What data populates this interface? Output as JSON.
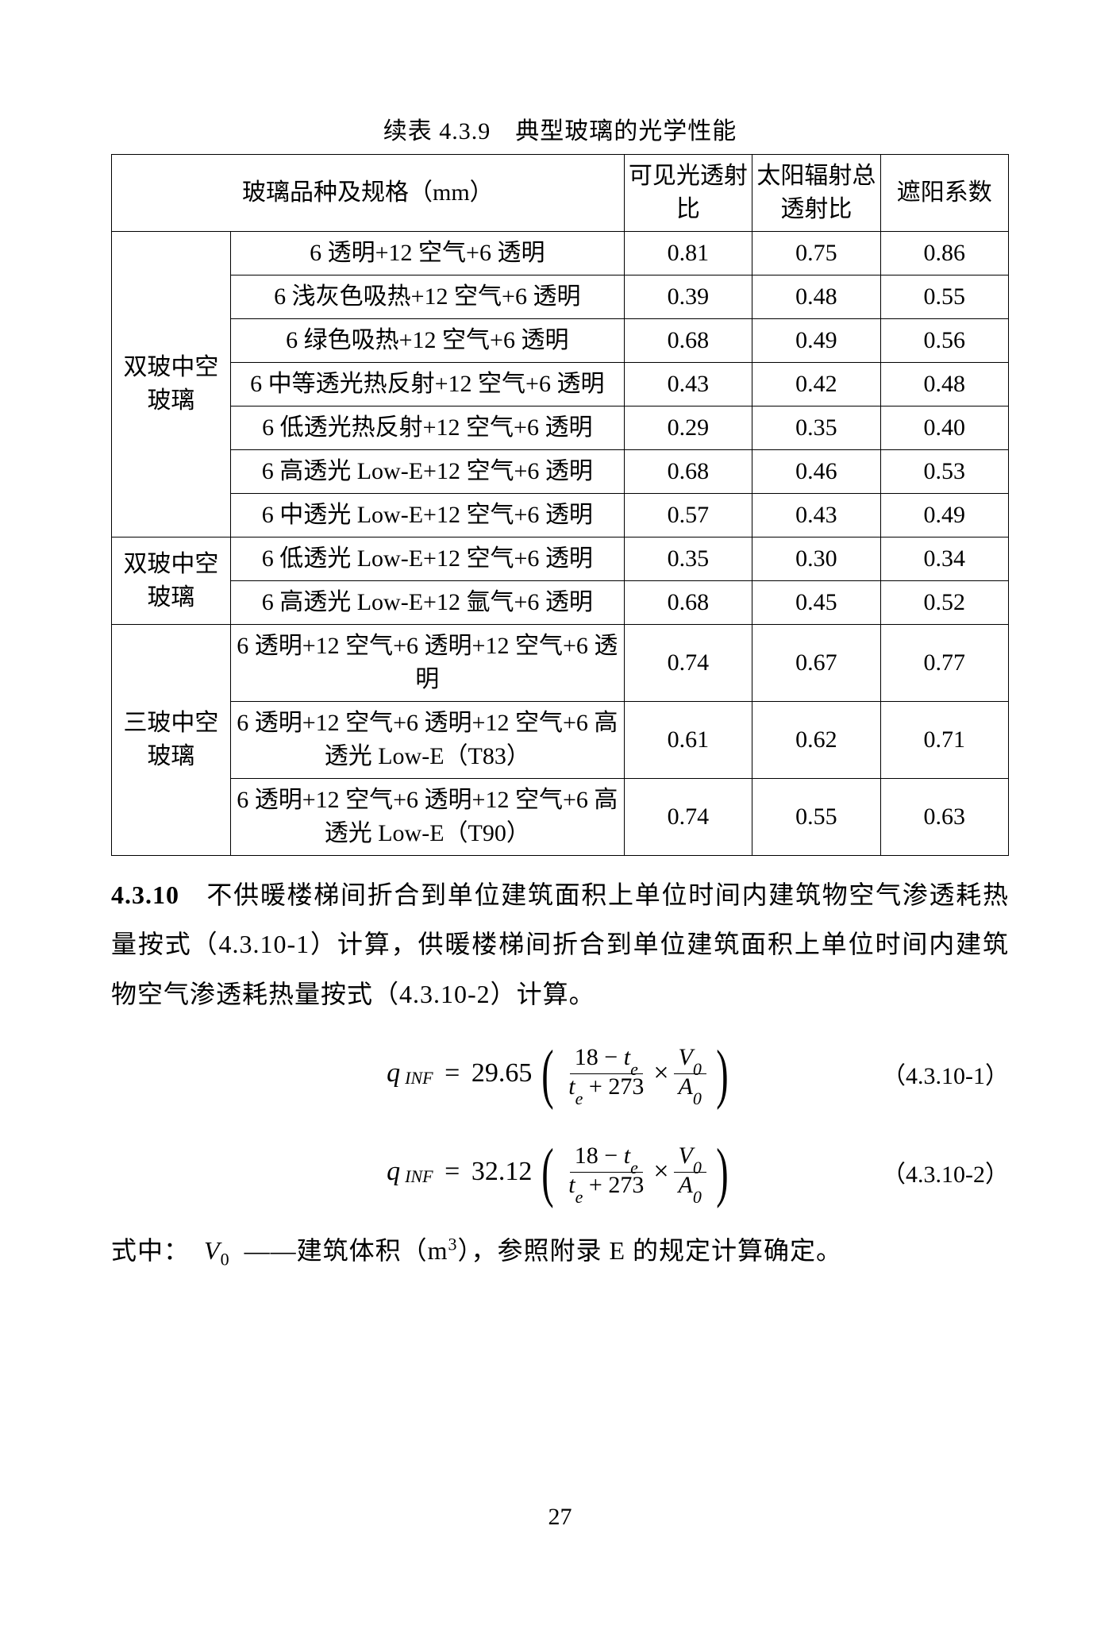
{
  "caption": "续表 4.3.9　典型玻璃的光学性能",
  "headers": {
    "spec": "玻璃品种及规格（mm）",
    "col1": "可见光透射比",
    "col2": "太阳辐射总透射比",
    "col3": "遮阳系数"
  },
  "groups": [
    {
      "name": "双玻中空玻璃",
      "rows": [
        {
          "spec": "6 透明+12 空气+6 透明",
          "v1": "0.81",
          "v2": "0.75",
          "v3": "0.86"
        },
        {
          "spec": "6 浅灰色吸热+12 空气+6 透明",
          "v1": "0.39",
          "v2": "0.48",
          "v3": "0.55"
        },
        {
          "spec": "6 绿色吸热+12 空气+6 透明",
          "v1": "0.68",
          "v2": "0.49",
          "v3": "0.56"
        },
        {
          "spec": "6 中等透光热反射+12 空气+6 透明",
          "v1": "0.43",
          "v2": "0.42",
          "v3": "0.48"
        },
        {
          "spec": "6 低透光热反射+12 空气+6 透明",
          "v1": "0.29",
          "v2": "0.35",
          "v3": "0.40"
        },
        {
          "spec": "6 高透光 Low-E+12 空气+6 透明",
          "v1": "0.68",
          "v2": "0.46",
          "v3": "0.53"
        },
        {
          "spec": "6 中透光 Low-E+12 空气+6 透明",
          "v1": "0.57",
          "v2": "0.43",
          "v3": "0.49"
        }
      ]
    },
    {
      "name": "双玻中空玻璃",
      "rows": [
        {
          "spec": "6 低透光 Low-E+12 空气+6 透明",
          "v1": "0.35",
          "v2": "0.30",
          "v3": "0.34"
        },
        {
          "spec": "6 高透光 Low-E+12 氩气+6 透明",
          "v1": "0.68",
          "v2": "0.45",
          "v3": "0.52"
        }
      ]
    },
    {
      "name": "三玻中空玻璃",
      "rows": [
        {
          "spec": "6 透明+12 空气+6 透明+12 空气+6 透明",
          "v1": "0.74",
          "v2": "0.67",
          "v3": "0.77"
        },
        {
          "spec": "6 透明+12 空气+6 透明+12 空气+6 高透光 Low-E（T83）",
          "v1": "0.61",
          "v2": "0.62",
          "v3": "0.71"
        },
        {
          "spec": "6 透明+12 空气+6 透明+12 空气+6 高透光 Low-E（T90）",
          "v1": "0.74",
          "v2": "0.55",
          "v3": "0.63"
        }
      ]
    }
  ],
  "section_no": "4.3.10",
  "para_text": "不供暖楼梯间折合到单位建筑面积上单位时间内建筑物空气渗透耗热量按式（4.3.10-1）计算，供暖楼梯间折合到单位建筑面积上单位时间内建筑物空气渗透耗热量按式（4.3.10-2）计算。",
  "eq1": {
    "coef": "29.65",
    "num": "（4.3.10-1）"
  },
  "eq2": {
    "coef": "32.12",
    "num": "（4.3.10-2）"
  },
  "where_label": "式中：",
  "where_body_a": "——建筑体积（m",
  "where_body_b": "），参照附录 E 的规定计算确定。",
  "page_number": "27"
}
